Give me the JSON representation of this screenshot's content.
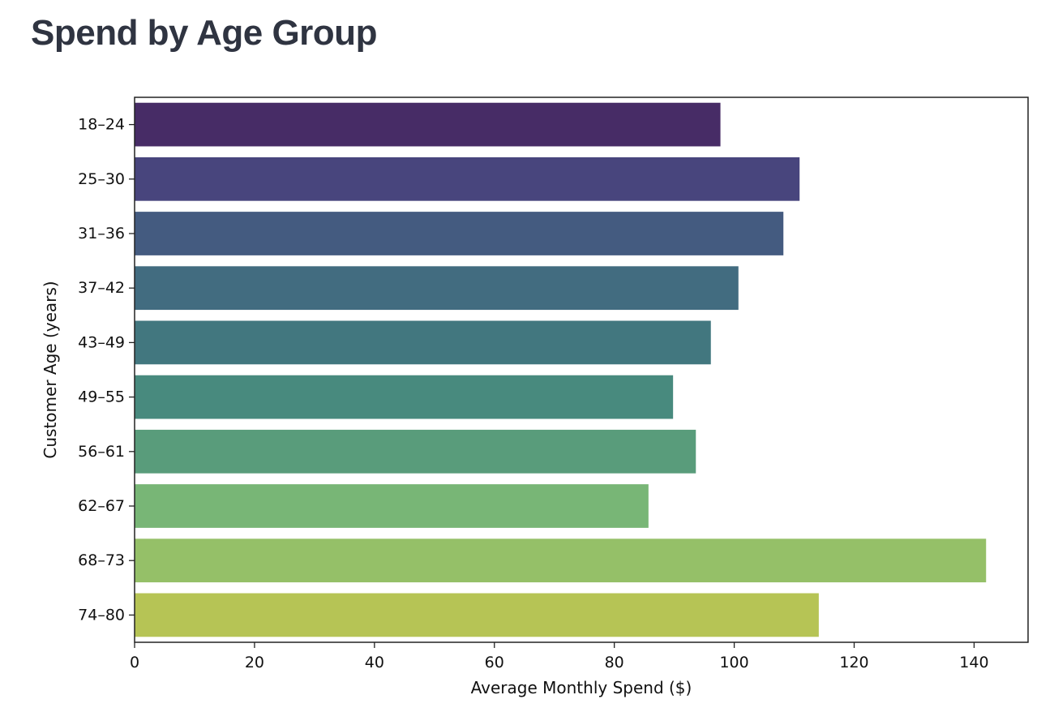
{
  "page": {
    "title": "Spend by Age Group"
  },
  "chart_data": {
    "type": "bar",
    "orientation": "horizontal",
    "title": "Spend by Age Group",
    "xlabel": "Average Monthly Spend ($)",
    "ylabel": "Customer Age (years)",
    "xlim": [
      0,
      149
    ],
    "xticks": [
      0,
      20,
      40,
      60,
      80,
      100,
      120,
      140
    ],
    "grid": false,
    "categories": [
      "18–24",
      "25–30",
      "31–36",
      "37–42",
      "43–49",
      "49–55",
      "56–61",
      "62–67",
      "68–73",
      "74–80"
    ],
    "values": [
      97.7,
      110.9,
      108.2,
      100.7,
      96.1,
      89.8,
      93.6,
      85.7,
      142.0,
      114.1
    ],
    "colors": [
      "#472c66",
      "#48457d",
      "#445b80",
      "#426c80",
      "#42777f",
      "#488a7e",
      "#599c7b",
      "#78b676",
      "#95c068",
      "#b6c455"
    ]
  }
}
